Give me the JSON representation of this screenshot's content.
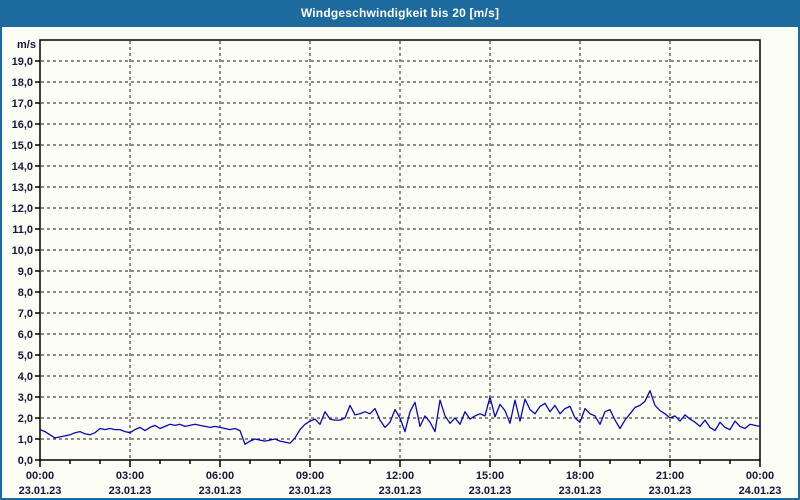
{
  "window": {
    "title": "Windgeschwindigkeit bis 20 [m/s]"
  },
  "colors": {
    "titlebar_bg": "#1d6a9e",
    "titlebar_text": "#ffffff",
    "page_bg": "#fcfdf4",
    "page_border": "#1d6a9e",
    "plot_border": "#000000",
    "grid": "#1a1a1a",
    "axis_text": "#16163c",
    "series_line": "#0909b4"
  },
  "chart_data": {
    "type": "line",
    "title": "Windgeschwindigkeit bis 20 [m/s]",
    "y_unit_label": "m/s",
    "ylim": [
      0,
      20
    ],
    "y_tick_step": 1,
    "y_tick_labels": [
      "0,0",
      "1,0",
      "2,0",
      "3,0",
      "4,0",
      "5,0",
      "6,0",
      "7,0",
      "8,0",
      "9,0",
      "10,0",
      "11,0",
      "12,0",
      "13,0",
      "14,0",
      "15,0",
      "16,0",
      "17,0",
      "18,0",
      "19,0"
    ],
    "x_range_hours": [
      0,
      24
    ],
    "x_major_tick_step_hours": 3,
    "x_minor_tick_step_hours": 1,
    "grid": "dashed",
    "legend": "none",
    "x_ticks": [
      {
        "time": "00:00",
        "date": "23.01.23"
      },
      {
        "time": "03:00",
        "date": "23.01.23"
      },
      {
        "time": "06:00",
        "date": "23.01.23"
      },
      {
        "time": "09:00",
        "date": "23.01.23"
      },
      {
        "time": "12:00",
        "date": "23.01.23"
      },
      {
        "time": "15:00",
        "date": "23.01.23"
      },
      {
        "time": "18:00",
        "date": "23.01.23"
      },
      {
        "time": "21:00",
        "date": "23.01.23"
      },
      {
        "time": "00:00",
        "date": "24.01.23"
      }
    ],
    "sample_interval_minutes": 10,
    "series": [
      {
        "name": "Windgeschwindigkeit",
        "color": "#0909b4",
        "values": [
          1.45,
          1.35,
          1.2,
          1.05,
          1.1,
          1.15,
          1.2,
          1.3,
          1.35,
          1.25,
          1.2,
          1.3,
          1.5,
          1.45,
          1.5,
          1.45,
          1.45,
          1.35,
          1.3,
          1.45,
          1.55,
          1.4,
          1.55,
          1.65,
          1.5,
          1.6,
          1.7,
          1.65,
          1.7,
          1.6,
          1.65,
          1.7,
          1.65,
          1.6,
          1.55,
          1.6,
          1.55,
          1.5,
          1.45,
          1.5,
          1.4,
          0.75,
          0.9,
          1.0,
          0.95,
          0.9,
          0.95,
          1.0,
          0.9,
          0.85,
          0.8,
          1.05,
          1.45,
          1.7,
          1.85,
          1.95,
          1.7,
          2.3,
          1.95,
          1.9,
          1.9,
          2.0,
          2.6,
          2.15,
          2.2,
          2.3,
          2.2,
          2.45,
          1.9,
          1.55,
          1.8,
          2.4,
          2.0,
          1.35,
          2.3,
          2.75,
          1.6,
          2.1,
          1.8,
          1.35,
          2.85,
          2.1,
          1.75,
          2.0,
          1.7,
          2.3,
          1.95,
          2.1,
          2.2,
          2.1,
          3.0,
          2.05,
          2.65,
          2.35,
          1.75,
          2.85,
          1.85,
          2.9,
          2.4,
          2.2,
          2.55,
          2.7,
          2.3,
          2.6,
          2.2,
          2.45,
          2.55,
          2.0,
          1.8,
          2.45,
          2.2,
          2.1,
          1.7,
          2.3,
          2.4,
          1.9,
          1.5,
          1.9,
          2.2,
          2.5,
          2.6,
          2.8,
          3.3,
          2.6,
          2.35,
          2.2,
          2.0,
          2.1,
          1.85,
          2.15,
          1.95,
          1.8,
          1.6,
          1.9,
          1.55,
          1.4,
          1.8,
          1.55,
          1.45,
          1.85,
          1.6,
          1.5,
          1.7,
          1.65,
          1.6
        ]
      }
    ]
  }
}
